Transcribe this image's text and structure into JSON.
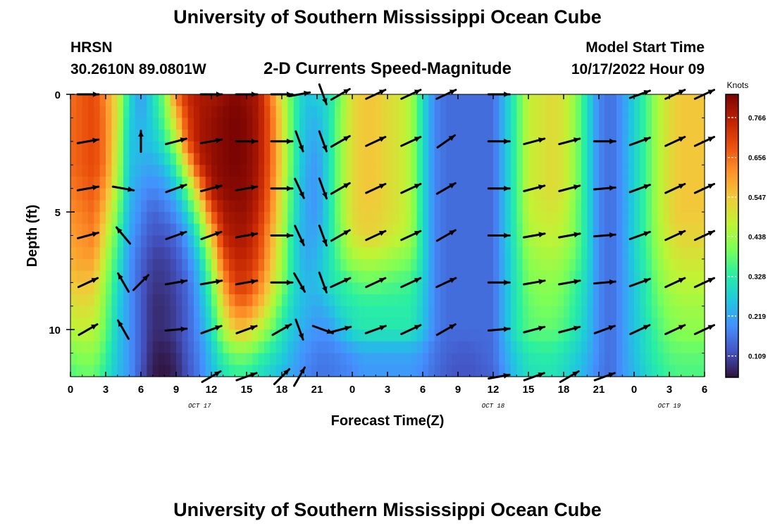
{
  "header": {
    "title": "University of Southern Mississippi Ocean Cube",
    "station": "HRSN",
    "coords": "30.2610N  89.0801W",
    "plot_title": "2-D Currents Speed-Magnitude",
    "model_label": "Model Start Time",
    "model_time": "10/17/2022 Hour 09",
    "footer_title": "University of Southern Mississippi Ocean Cube"
  },
  "colors": {
    "axis": "#000000",
    "arrow": "#000000",
    "colormap": [
      "#30123b",
      "#4454c4",
      "#4490fe",
      "#1fc8de",
      "#29efa2",
      "#7dff56",
      "#c1f334",
      "#f1ca3a",
      "#fe922a",
      "#ea4f0d",
      "#be2102",
      "#7a0403"
    ]
  },
  "chart_data": {
    "type": "heatmap",
    "title": "2-D Currents Speed-Magnitude",
    "xlabel": "Forecast Time(Z)",
    "ylabel": "Depth (ft)",
    "x_range_hours": [
      0,
      54
    ],
    "y_range_ft": [
      0,
      12
    ],
    "x_ticks": [
      "0",
      "3",
      "6",
      "9",
      "12",
      "15",
      "18",
      "21",
      "0",
      "3",
      "6",
      "9",
      "12",
      "15",
      "18",
      "21",
      "0",
      "3",
      "6"
    ],
    "y_ticks": [
      "0",
      "5",
      "10"
    ],
    "date_labels": [
      {
        "text": "OCT 17",
        "hour": 11
      },
      {
        "text": "OCT 18",
        "hour": 36
      },
      {
        "text": "OCT 19",
        "hour": 51
      }
    ],
    "colorbar": {
      "label": "Knots",
      "range": [
        0.05,
        0.83
      ],
      "ticks": [
        "0.766",
        "0.656",
        "0.547",
        "0.438",
        "0.328",
        "0.219",
        "0.109"
      ],
      "tick_values": [
        0.766,
        0.656,
        0.547,
        0.438,
        0.328,
        0.219,
        0.109
      ]
    },
    "depths": [
      0,
      1,
      2,
      3,
      4,
      5,
      6,
      7,
      8,
      9,
      10,
      11,
      12
    ],
    "hours": [
      0,
      1,
      2,
      3,
      4,
      5,
      6,
      7,
      8,
      9,
      10,
      11,
      12,
      13,
      14,
      15,
      16,
      17,
      18,
      19,
      20,
      21,
      22,
      23,
      24,
      25,
      26,
      27,
      28,
      29,
      30,
      31,
      32,
      33,
      34,
      35,
      36,
      37,
      38,
      39,
      40,
      41,
      42,
      43,
      44,
      45,
      46,
      47,
      48,
      49,
      50,
      51,
      52,
      53,
      54
    ],
    "speed_knots": [
      [
        0.65,
        0.68,
        0.7,
        0.62,
        0.5,
        0.3,
        0.2,
        0.3,
        0.4,
        0.65,
        0.75,
        0.78,
        0.78,
        0.8,
        0.82,
        0.8,
        0.78,
        0.65,
        0.5,
        0.35,
        0.26,
        0.28,
        0.3,
        0.4,
        0.52,
        0.55,
        0.55,
        0.52,
        0.5,
        0.45,
        0.3,
        0.18,
        0.15,
        0.15,
        0.15,
        0.15,
        0.15,
        0.25,
        0.35,
        0.48,
        0.5,
        0.52,
        0.5,
        0.42,
        0.3,
        0.18,
        0.15,
        0.2,
        0.28,
        0.35,
        0.45,
        0.52,
        0.55,
        0.55,
        0.55
      ],
      [
        0.66,
        0.68,
        0.7,
        0.64,
        0.5,
        0.28,
        0.22,
        0.28,
        0.38,
        0.55,
        0.72,
        0.78,
        0.8,
        0.82,
        0.83,
        0.82,
        0.78,
        0.68,
        0.52,
        0.35,
        0.25,
        0.24,
        0.3,
        0.42,
        0.52,
        0.55,
        0.55,
        0.52,
        0.5,
        0.45,
        0.3,
        0.18,
        0.15,
        0.15,
        0.15,
        0.15,
        0.15,
        0.25,
        0.35,
        0.48,
        0.5,
        0.52,
        0.5,
        0.42,
        0.3,
        0.18,
        0.15,
        0.2,
        0.28,
        0.35,
        0.45,
        0.52,
        0.55,
        0.55,
        0.55
      ],
      [
        0.66,
        0.68,
        0.7,
        0.64,
        0.48,
        0.26,
        0.25,
        0.26,
        0.33,
        0.45,
        0.7,
        0.78,
        0.8,
        0.82,
        0.83,
        0.82,
        0.78,
        0.68,
        0.52,
        0.35,
        0.24,
        0.22,
        0.3,
        0.42,
        0.52,
        0.55,
        0.55,
        0.52,
        0.5,
        0.45,
        0.3,
        0.18,
        0.15,
        0.15,
        0.15,
        0.15,
        0.15,
        0.25,
        0.35,
        0.48,
        0.5,
        0.52,
        0.5,
        0.42,
        0.3,
        0.18,
        0.15,
        0.2,
        0.28,
        0.35,
        0.45,
        0.52,
        0.55,
        0.55,
        0.55
      ],
      [
        0.66,
        0.68,
        0.7,
        0.64,
        0.46,
        0.26,
        0.23,
        0.22,
        0.26,
        0.35,
        0.55,
        0.75,
        0.8,
        0.82,
        0.83,
        0.82,
        0.78,
        0.68,
        0.52,
        0.35,
        0.23,
        0.2,
        0.3,
        0.42,
        0.52,
        0.55,
        0.55,
        0.52,
        0.5,
        0.45,
        0.3,
        0.18,
        0.15,
        0.15,
        0.15,
        0.15,
        0.15,
        0.25,
        0.35,
        0.48,
        0.5,
        0.52,
        0.5,
        0.42,
        0.3,
        0.18,
        0.15,
        0.2,
        0.28,
        0.35,
        0.45,
        0.52,
        0.55,
        0.55,
        0.55
      ],
      [
        0.64,
        0.66,
        0.68,
        0.6,
        0.44,
        0.25,
        0.2,
        0.18,
        0.2,
        0.26,
        0.4,
        0.6,
        0.78,
        0.81,
        0.82,
        0.81,
        0.77,
        0.66,
        0.5,
        0.33,
        0.22,
        0.2,
        0.3,
        0.42,
        0.52,
        0.55,
        0.55,
        0.52,
        0.5,
        0.45,
        0.3,
        0.18,
        0.15,
        0.15,
        0.15,
        0.15,
        0.15,
        0.25,
        0.35,
        0.48,
        0.5,
        0.52,
        0.5,
        0.42,
        0.3,
        0.18,
        0.15,
        0.2,
        0.28,
        0.35,
        0.45,
        0.52,
        0.55,
        0.55,
        0.55
      ],
      [
        0.62,
        0.64,
        0.66,
        0.55,
        0.4,
        0.24,
        0.18,
        0.14,
        0.16,
        0.2,
        0.3,
        0.45,
        0.68,
        0.78,
        0.8,
        0.8,
        0.75,
        0.64,
        0.48,
        0.32,
        0.22,
        0.2,
        0.3,
        0.42,
        0.52,
        0.54,
        0.54,
        0.52,
        0.5,
        0.45,
        0.3,
        0.18,
        0.15,
        0.15,
        0.15,
        0.15,
        0.15,
        0.25,
        0.35,
        0.47,
        0.49,
        0.5,
        0.48,
        0.4,
        0.3,
        0.18,
        0.15,
        0.2,
        0.28,
        0.35,
        0.45,
        0.52,
        0.55,
        0.55,
        0.55
      ],
      [
        0.6,
        0.62,
        0.64,
        0.5,
        0.36,
        0.22,
        0.16,
        0.12,
        0.12,
        0.15,
        0.22,
        0.35,
        0.55,
        0.75,
        0.78,
        0.78,
        0.72,
        0.6,
        0.46,
        0.3,
        0.22,
        0.22,
        0.3,
        0.4,
        0.5,
        0.53,
        0.53,
        0.5,
        0.48,
        0.44,
        0.3,
        0.18,
        0.15,
        0.15,
        0.15,
        0.15,
        0.15,
        0.25,
        0.34,
        0.45,
        0.47,
        0.48,
        0.46,
        0.4,
        0.3,
        0.18,
        0.15,
        0.2,
        0.28,
        0.35,
        0.44,
        0.5,
        0.53,
        0.53,
        0.53
      ],
      [
        0.58,
        0.6,
        0.6,
        0.46,
        0.33,
        0.2,
        0.14,
        0.1,
        0.1,
        0.12,
        0.18,
        0.28,
        0.45,
        0.68,
        0.75,
        0.75,
        0.7,
        0.58,
        0.44,
        0.3,
        0.22,
        0.24,
        0.3,
        0.38,
        0.44,
        0.46,
        0.46,
        0.44,
        0.42,
        0.4,
        0.3,
        0.18,
        0.15,
        0.15,
        0.15,
        0.15,
        0.15,
        0.24,
        0.33,
        0.42,
        0.44,
        0.45,
        0.43,
        0.38,
        0.3,
        0.18,
        0.15,
        0.2,
        0.28,
        0.34,
        0.42,
        0.48,
        0.5,
        0.5,
        0.5
      ],
      [
        0.55,
        0.56,
        0.55,
        0.42,
        0.3,
        0.2,
        0.13,
        0.09,
        0.09,
        0.11,
        0.15,
        0.24,
        0.38,
        0.6,
        0.72,
        0.72,
        0.65,
        0.54,
        0.42,
        0.3,
        0.24,
        0.25,
        0.3,
        0.33,
        0.36,
        0.38,
        0.38,
        0.37,
        0.36,
        0.35,
        0.28,
        0.18,
        0.15,
        0.15,
        0.15,
        0.15,
        0.15,
        0.24,
        0.32,
        0.4,
        0.42,
        0.42,
        0.4,
        0.35,
        0.28,
        0.18,
        0.15,
        0.2,
        0.26,
        0.32,
        0.4,
        0.45,
        0.47,
        0.47,
        0.47
      ],
      [
        0.5,
        0.52,
        0.5,
        0.4,
        0.28,
        0.2,
        0.13,
        0.08,
        0.08,
        0.1,
        0.14,
        0.22,
        0.33,
        0.52,
        0.64,
        0.65,
        0.58,
        0.48,
        0.36,
        0.28,
        0.24,
        0.22,
        0.25,
        0.3,
        0.32,
        0.33,
        0.33,
        0.33,
        0.33,
        0.33,
        0.27,
        0.18,
        0.15,
        0.15,
        0.15,
        0.15,
        0.15,
        0.24,
        0.32,
        0.38,
        0.4,
        0.4,
        0.38,
        0.33,
        0.27,
        0.18,
        0.15,
        0.2,
        0.26,
        0.32,
        0.38,
        0.42,
        0.44,
        0.44,
        0.44
      ],
      [
        0.46,
        0.48,
        0.47,
        0.38,
        0.27,
        0.2,
        0.13,
        0.08,
        0.08,
        0.1,
        0.14,
        0.2,
        0.3,
        0.45,
        0.55,
        0.55,
        0.48,
        0.4,
        0.32,
        0.26,
        0.22,
        0.2,
        0.2,
        0.25,
        0.3,
        0.32,
        0.32,
        0.32,
        0.32,
        0.32,
        0.26,
        0.18,
        0.15,
        0.15,
        0.15,
        0.15,
        0.15,
        0.24,
        0.32,
        0.37,
        0.38,
        0.38,
        0.36,
        0.32,
        0.26,
        0.18,
        0.15,
        0.2,
        0.26,
        0.3,
        0.36,
        0.4,
        0.42,
        0.42,
        0.42
      ],
      [
        0.4,
        0.42,
        0.42,
        0.35,
        0.26,
        0.2,
        0.13,
        0.07,
        0.06,
        0.08,
        0.13,
        0.18,
        0.26,
        0.35,
        0.4,
        0.4,
        0.36,
        0.32,
        0.28,
        0.23,
        0.19,
        0.17,
        0.17,
        0.18,
        0.2,
        0.22,
        0.22,
        0.22,
        0.22,
        0.22,
        0.2,
        0.16,
        0.14,
        0.13,
        0.13,
        0.14,
        0.15,
        0.22,
        0.28,
        0.32,
        0.33,
        0.33,
        0.31,
        0.28,
        0.24,
        0.18,
        0.15,
        0.2,
        0.25,
        0.3,
        0.34,
        0.37,
        0.38,
        0.38,
        0.38
      ],
      [
        0.36,
        0.38,
        0.38,
        0.32,
        0.25,
        0.2,
        0.12,
        0.06,
        0.05,
        0.07,
        0.12,
        0.17,
        0.24,
        0.3,
        0.33,
        0.33,
        0.3,
        0.27,
        0.24,
        0.21,
        0.18,
        0.16,
        0.16,
        0.17,
        0.18,
        0.2,
        0.2,
        0.2,
        0.2,
        0.2,
        0.18,
        0.15,
        0.13,
        0.12,
        0.12,
        0.13,
        0.14,
        0.2,
        0.26,
        0.3,
        0.31,
        0.31,
        0.29,
        0.26,
        0.22,
        0.17,
        0.15,
        0.2,
        0.24,
        0.28,
        0.32,
        0.35,
        0.36,
        0.36,
        0.36
      ]
    ],
    "arrow_hours": [
      1.5,
      4.5,
      6,
      9,
      12,
      15,
      18,
      19.5,
      21.5,
      23,
      26,
      29,
      32,
      36.5,
      39.5,
      42.5,
      45.5,
      48.5,
      51.5,
      54
    ],
    "arrow_depths": [
      0,
      2,
      4,
      6,
      8,
      10,
      12
    ],
    "arrow_angles_deg": [
      [
        0,
        null,
        null,
        null,
        0,
        0,
        0,
        -10,
        70,
        -30,
        -25,
        -25,
        -25,
        0,
        null,
        null,
        null,
        -20,
        -25,
        -25
      ],
      [
        -10,
        null,
        -90,
        -15,
        -10,
        0,
        0,
        70,
        70,
        -30,
        -25,
        -25,
        -35,
        0,
        -15,
        -15,
        0,
        -20,
        -25,
        -25
      ],
      [
        -10,
        10,
        null,
        -20,
        -15,
        -10,
        0,
        65,
        70,
        -30,
        -25,
        -25,
        -30,
        0,
        -15,
        -15,
        -5,
        -20,
        -25,
        -25
      ],
      [
        -15,
        -130,
        null,
        -20,
        -20,
        -10,
        0,
        65,
        70,
        -30,
        -25,
        -25,
        -30,
        0,
        -10,
        -10,
        -5,
        -20,
        -25,
        -25
      ],
      [
        -25,
        -120,
        -45,
        -10,
        -10,
        -10,
        0,
        60,
        70,
        -25,
        -25,
        -25,
        -25,
        0,
        -10,
        -10,
        -5,
        -20,
        -25,
        -25
      ],
      [
        -30,
        -120,
        null,
        -5,
        -20,
        -20,
        -30,
        70,
        20,
        -15,
        -20,
        -25,
        -30,
        -5,
        -15,
        -15,
        -20,
        -25,
        -25,
        -25
      ],
      [
        null,
        null,
        null,
        null,
        -30,
        -20,
        -45,
        -60,
        null,
        null,
        null,
        null,
        null,
        -10,
        -20,
        -30,
        -20,
        null,
        null,
        null
      ]
    ]
  }
}
